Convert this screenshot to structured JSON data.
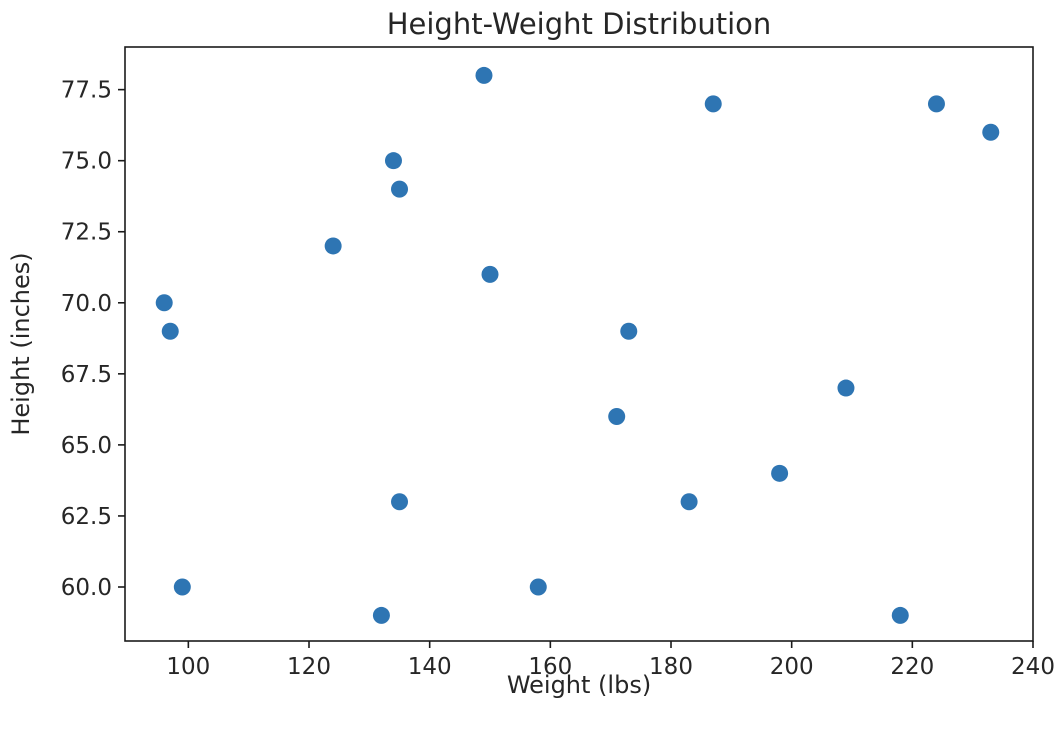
{
  "chart_data": {
    "type": "scatter",
    "title": "Height-Weight Distribution",
    "xlabel": "Weight (lbs)",
    "ylabel": "Height (inches)",
    "xlim": [
      89.5,
      240
    ],
    "ylim": [
      58.1,
      79
    ],
    "xticks": [
      100,
      120,
      140,
      160,
      180,
      200,
      220,
      240
    ],
    "yticks": [
      60.0,
      62.5,
      65.0,
      67.5,
      70.0,
      72.5,
      75.0,
      77.5
    ],
    "xtick_labels": [
      "100",
      "120",
      "140",
      "160",
      "180",
      "200",
      "220",
      "240"
    ],
    "ytick_labels": [
      "60.0",
      "62.5",
      "65.0",
      "67.5",
      "70.0",
      "72.5",
      "75.0",
      "77.5"
    ],
    "grid": false,
    "marker_color": "#2e75b3",
    "points": [
      {
        "x": 149,
        "y": 78
      },
      {
        "x": 187,
        "y": 77
      },
      {
        "x": 224,
        "y": 77
      },
      {
        "x": 233,
        "y": 76
      },
      {
        "x": 134,
        "y": 75
      },
      {
        "x": 135,
        "y": 74
      },
      {
        "x": 124,
        "y": 72
      },
      {
        "x": 150,
        "y": 71
      },
      {
        "x": 96,
        "y": 70
      },
      {
        "x": 97,
        "y": 69
      },
      {
        "x": 173,
        "y": 69
      },
      {
        "x": 209,
        "y": 67
      },
      {
        "x": 171,
        "y": 66
      },
      {
        "x": 198,
        "y": 64
      },
      {
        "x": 135,
        "y": 63
      },
      {
        "x": 183,
        "y": 63
      },
      {
        "x": 99,
        "y": 60
      },
      {
        "x": 158,
        "y": 60
      },
      {
        "x": 132,
        "y": 59
      },
      {
        "x": 218,
        "y": 59
      }
    ]
  }
}
